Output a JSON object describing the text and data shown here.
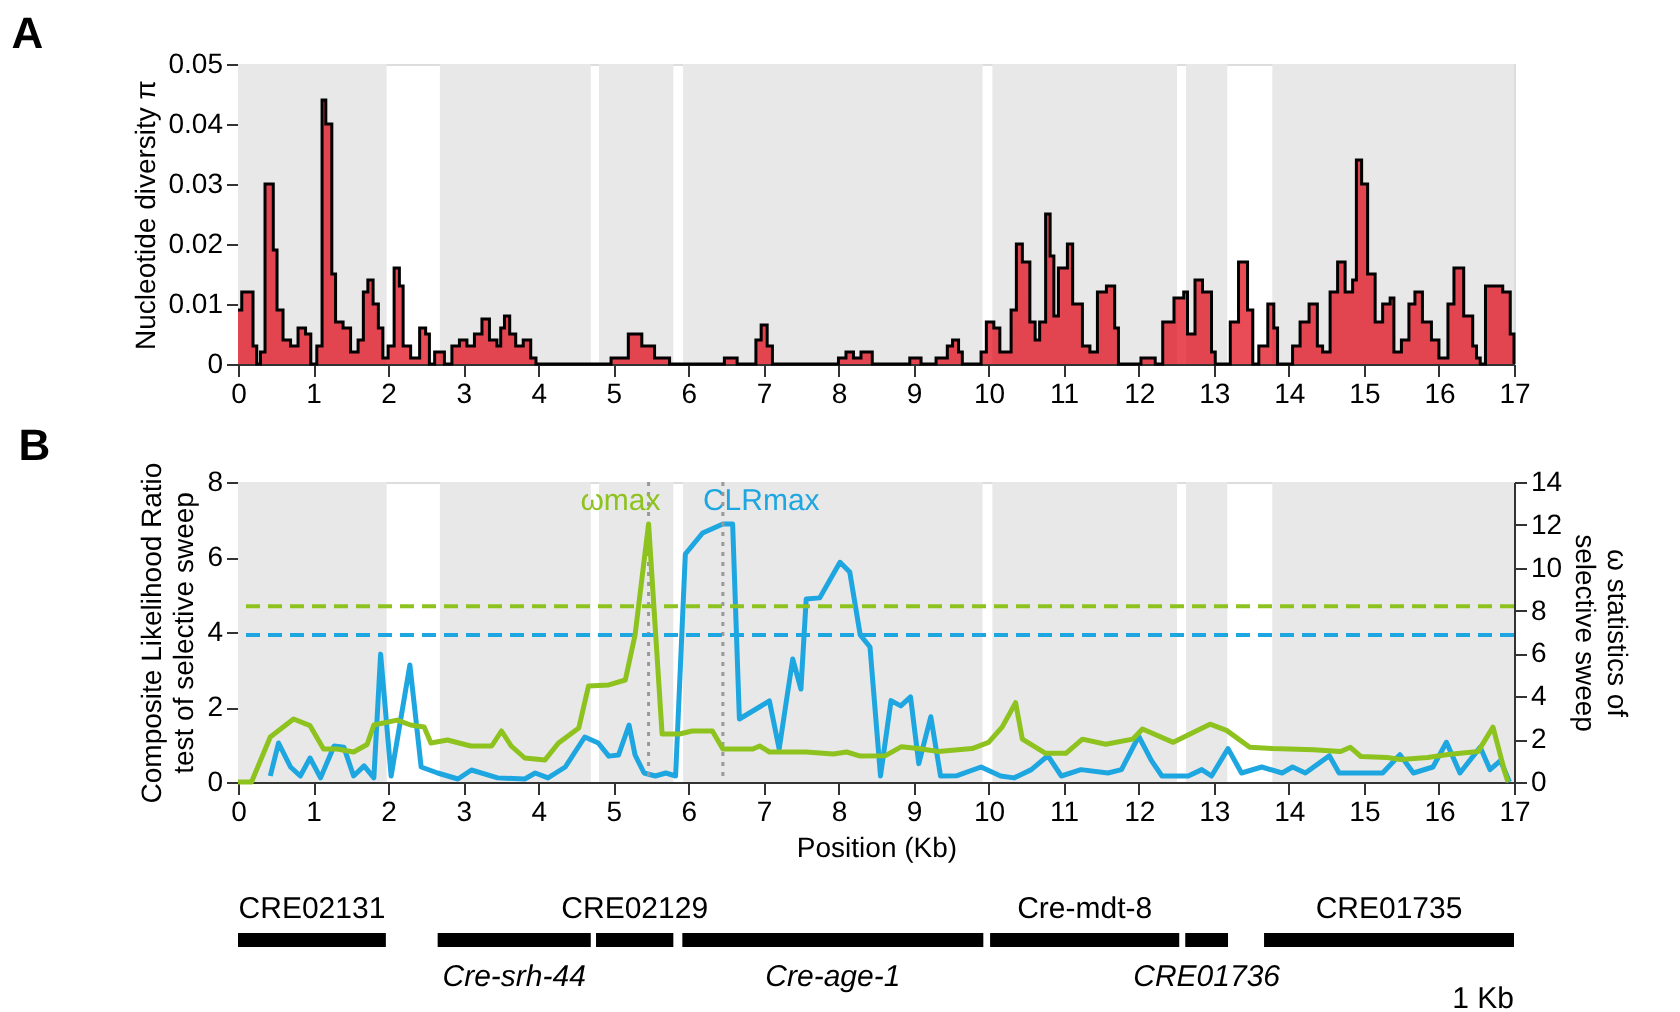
{
  "chart_data": [
    {
      "type": "area",
      "title": "A",
      "ylabel": "Nucleotide diversity π",
      "xlim": [
        0,
        17
      ],
      "xticks": [
        0,
        1,
        2,
        3,
        4,
        5,
        6,
        7,
        8,
        9,
        10,
        11,
        12,
        13,
        14,
        15,
        16,
        17
      ],
      "ylim": [
        0,
        0.05
      ],
      "yticks": [
        0,
        0.01,
        0.02,
        0.03,
        0.04,
        0.05
      ],
      "grid": false,
      "bands": [
        {
          "axis": "x",
          "from": 0,
          "to": 1.98,
          "color": "#e8e8e8"
        },
        {
          "axis": "x",
          "from": 2.69,
          "to": 4.7,
          "color": "#e8e8e8"
        },
        {
          "axis": "x",
          "from": 4.81,
          "to": 5.8,
          "color": "#e8e8e8"
        },
        {
          "axis": "x",
          "from": 5.93,
          "to": 9.92,
          "color": "#e8e8e8"
        },
        {
          "axis": "x",
          "from": 10.05,
          "to": 12.51,
          "color": "#e8e8e8"
        },
        {
          "axis": "x",
          "from": 12.63,
          "to": 13.18,
          "color": "#e8e8e8"
        },
        {
          "axis": "x",
          "from": 13.78,
          "to": 17,
          "color": "#e8e8e8"
        }
      ],
      "series": [
        {
          "color": "#e00010",
          "x": [
            0.0,
            0.05,
            0.12,
            0.2,
            0.25,
            0.3,
            0.36,
            0.4,
            0.47,
            0.52,
            0.6,
            0.7,
            0.8,
            0.9,
            0.97,
            1.05,
            1.12,
            1.17,
            1.25,
            1.3,
            1.4,
            1.5,
            1.6,
            1.67,
            1.73,
            1.8,
            1.87,
            1.93,
            2.0,
            2.08,
            2.15,
            2.2,
            2.3,
            2.42,
            2.5,
            2.55,
            2.62,
            2.7,
            2.75,
            2.85,
            2.95,
            3.05,
            3.15,
            3.25,
            3.35,
            3.45,
            3.5,
            3.55,
            3.62,
            3.7,
            3.8,
            3.9,
            3.97,
            4.95,
            4.97,
            5.15,
            5.2,
            5.33,
            5.38,
            5.5,
            5.55,
            5.7,
            5.75,
            6.45,
            6.48,
            6.62,
            6.65,
            6.85,
            6.9,
            6.97,
            7.05,
            7.12,
            7.95,
            8.0,
            8.1,
            8.15,
            8.2,
            8.3,
            8.4,
            8.45,
            8.9,
            8.95,
            9.05,
            9.1,
            9.25,
            9.3,
            9.45,
            9.52,
            9.6,
            9.65,
            9.85,
            9.9,
            9.97,
            10.07,
            10.15,
            10.3,
            10.37,
            10.45,
            10.55,
            10.62,
            10.68,
            10.76,
            10.82,
            10.87,
            10.93,
            11.05,
            11.12,
            11.25,
            11.35,
            11.45,
            11.57,
            11.68,
            11.73,
            12.0,
            12.03,
            12.15,
            12.22,
            12.32,
            12.47,
            12.6,
            12.65,
            12.75,
            12.85,
            12.97,
            13.02,
            13.15,
            13.22,
            13.33,
            13.45,
            13.52,
            13.6,
            13.68,
            13.72,
            13.8,
            13.85,
            14.0,
            14.05,
            14.15,
            14.27,
            14.38,
            14.45,
            14.55,
            14.65,
            14.75,
            14.85,
            14.9,
            14.97,
            15.05,
            15.15,
            15.25,
            15.35,
            15.4,
            15.5,
            15.6,
            15.68,
            15.78,
            15.9,
            16.0,
            16.12,
            16.2,
            16.33,
            16.45,
            16.5,
            16.55,
            16.62,
            16.75,
            16.85,
            16.95,
            17.0
          ],
          "values": [
            0.009,
            0.012,
            0.012,
            0.003,
            0.0,
            0.002,
            0.03,
            0.03,
            0.019,
            0.009,
            0.004,
            0.003,
            0.006,
            0.005,
            0.0,
            0.003,
            0.044,
            0.04,
            0.015,
            0.007,
            0.006,
            0.002,
            0.004,
            0.012,
            0.014,
            0.01,
            0.006,
            0.001,
            0.003,
            0.016,
            0.013,
            0.003,
            0.001,
            0.006,
            0.005,
            0.0,
            0.002,
            0.002,
            0.0,
            0.003,
            0.004,
            0.003,
            0.005,
            0.0075,
            0.004,
            0.003,
            0.006,
            0.008,
            0.005,
            0.003,
            0.004,
            0.001,
            0.0,
            0.0,
            0.001,
            0.001,
            0.005,
            0.005,
            0.003,
            0.003,
            0.001,
            0.001,
            0.0,
            0.0,
            0.001,
            0.001,
            0.0,
            0.0,
            0.004,
            0.0065,
            0.003,
            0.0,
            0.0,
            0.001,
            0.002,
            0.002,
            0.001,
            0.002,
            0.002,
            0.0,
            0.0,
            0.001,
            0.001,
            0.0,
            0.0,
            0.001,
            0.003,
            0.004,
            0.002,
            0.0,
            0.0,
            0.002,
            0.007,
            0.006,
            0.002,
            0.009,
            0.02,
            0.017,
            0.007,
            0.004,
            0.007,
            0.025,
            0.018,
            0.008,
            0.016,
            0.02,
            0.01,
            0.003,
            0.002,
            0.012,
            0.013,
            0.006,
            0.0,
            0.0,
            0.001,
            0.001,
            0.0,
            0.007,
            0.011,
            0.012,
            0.005,
            0.014,
            0.012,
            0.002,
            0.0,
            0.0,
            0.007,
            0.017,
            0.009,
            0.0,
            0.003,
            0.003,
            0.01,
            0.006,
            0.0,
            0.0,
            0.003,
            0.007,
            0.01,
            0.003,
            0.002,
            0.012,
            0.017,
            0.012,
            0.014,
            0.034,
            0.03,
            0.015,
            0.007,
            0.01,
            0.011,
            0.002,
            0.004,
            0.01,
            0.012,
            0.007,
            0.004,
            0.001,
            0.01,
            0.016,
            0.008,
            0.003,
            0.001,
            0.0,
            0.013,
            0.013,
            0.012,
            0.005,
            0.0
          ]
        }
      ]
    },
    {
      "type": "line",
      "title": "B",
      "xlabel": "Position (Kb)",
      "ylabel": "Composite Likelihood Ratio\ntest of selective sweep",
      "y2label": "ω statistics of\nselective sweep",
      "xlim": [
        0,
        17
      ],
      "xticks": [
        0,
        1,
        2,
        3,
        4,
        5,
        6,
        7,
        8,
        9,
        10,
        11,
        12,
        13,
        14,
        15,
        16,
        17
      ],
      "ylim": [
        0,
        8
      ],
      "yticks": [
        0,
        2,
        4,
        6,
        8
      ],
      "y2lim": [
        0,
        14
      ],
      "y2ticks": [
        0,
        2,
        4,
        6,
        8,
        10,
        12,
        14
      ],
      "grid": false,
      "marker": "none",
      "line_style": "solid",
      "bands": [
        {
          "axis": "x",
          "from": 0,
          "to": 1.98,
          "color": "#e8e8e8"
        },
        {
          "axis": "x",
          "from": 2.69,
          "to": 4.7,
          "color": "#e8e8e8"
        },
        {
          "axis": "x",
          "from": 4.81,
          "to": 5.8,
          "color": "#e8e8e8"
        },
        {
          "axis": "x",
          "from": 5.93,
          "to": 9.92,
          "color": "#e8e8e8"
        },
        {
          "axis": "x",
          "from": 10.05,
          "to": 12.51,
          "color": "#e8e8e8"
        },
        {
          "axis": "x",
          "from": 12.63,
          "to": 13.18,
          "color": "#e8e8e8"
        },
        {
          "axis": "x",
          "from": 13.78,
          "to": 17,
          "color": "#e8e8e8"
        }
      ],
      "ref_lines": [
        {
          "axis": "y2",
          "value": 8.2,
          "color": "#8dc21f",
          "line_style": "dashed"
        },
        {
          "axis": "y",
          "value": 3.92,
          "color": "#1ea6e0",
          "line_style": "dashed"
        },
        {
          "axis": "x",
          "value": 5.47,
          "color": "#999999",
          "line_style": "dotted"
        },
        {
          "axis": "x",
          "value": 6.46,
          "color": "#999999",
          "line_style": "dotted"
        }
      ],
      "series": [
        {
          "name": "ωmax",
          "color": "#8dc21f",
          "axis": "y2",
          "x": [
            0.0,
            0.18,
            0.43,
            0.74,
            0.96,
            1.14,
            1.32,
            1.54,
            1.72,
            1.81,
            2.12,
            2.3,
            2.48,
            2.57,
            2.79,
            3.1,
            3.38,
            3.51,
            3.64,
            3.82,
            4.09,
            4.27,
            4.54,
            4.67,
            4.94,
            5.16,
            5.29,
            5.47,
            5.65,
            5.88,
            6.05,
            6.32,
            6.46,
            6.86,
            6.95,
            7.08,
            7.57,
            7.93,
            8.11,
            8.29,
            8.62,
            8.84,
            9.06,
            9.33,
            9.78,
            10.0,
            10.18,
            10.36,
            10.45,
            10.76,
            11.03,
            11.25,
            11.56,
            11.92,
            12.05,
            12.46,
            12.95,
            13.17,
            13.48,
            13.79,
            14.33,
            14.69,
            14.82,
            14.96,
            15.31,
            15.49,
            15.85,
            16.12,
            16.52,
            16.72,
            16.88,
            16.92
          ],
          "values": [
            0,
            0,
            2.1,
            2.94,
            2.63,
            1.54,
            1.54,
            1.4,
            1.75,
            2.66,
            2.89,
            2.66,
            2.57,
            1.82,
            1.96,
            1.68,
            1.68,
            2.38,
            1.68,
            1.12,
            1.03,
            1.82,
            2.52,
            4.48,
            4.53,
            4.76,
            6.86,
            12.04,
            2.24,
            2.24,
            2.38,
            2.38,
            1.54,
            1.54,
            1.68,
            1.4,
            1.4,
            1.31,
            1.4,
            1.21,
            1.22,
            1.65,
            1.56,
            1.42,
            1.56,
            1.85,
            2.56,
            3.7,
            2.0,
            1.34,
            1.34,
            2.0,
            1.76,
            2.0,
            2.47,
            1.85,
            2.7,
            2.41,
            1.62,
            1.56,
            1.5,
            1.42,
            1.62,
            1.19,
            1.14,
            1.05,
            1.14,
            1.28,
            1.42,
            2.56,
            0.43,
            0
          ]
        },
        {
          "name": "CLRmax",
          "color": "#1ea6e0",
          "x": [
            0.43,
            0.54,
            0.7,
            0.83,
            0.96,
            1.1,
            1.28,
            1.41,
            1.54,
            1.68,
            1.81,
            1.9,
            2.04,
            2.29,
            2.44,
            2.66,
            2.93,
            3.11,
            3.46,
            3.82,
            3.96,
            4.13,
            4.36,
            4.62,
            4.8,
            4.94,
            5.07,
            5.21,
            5.29,
            5.41,
            5.56,
            5.7,
            5.83,
            5.96,
            6.19,
            6.46,
            6.59,
            6.68,
            7.08,
            7.21,
            7.39,
            7.5,
            7.57,
            7.75,
            8.02,
            8.15,
            8.29,
            8.42,
            8.56,
            8.7,
            8.83,
            8.96,
            9.07,
            9.23,
            9.36,
            9.58,
            9.9,
            10.16,
            10.34,
            10.57,
            10.79,
            10.97,
            11.23,
            11.59,
            11.77,
            12.0,
            12.17,
            12.31,
            12.66,
            12.84,
            12.97,
            13.19,
            13.37,
            13.64,
            13.91,
            14.05,
            14.22,
            14.54,
            14.67,
            15.25,
            15.48,
            15.66,
            15.92,
            16.1,
            16.28,
            16.55,
            16.68,
            16.82,
            16.94
          ],
          "values": [
            0.16,
            1.04,
            0.4,
            0.16,
            0.64,
            0.11,
            0.96,
            0.93,
            0.16,
            0.43,
            0.11,
            3.41,
            0.16,
            3.12,
            0.4,
            0.24,
            0.08,
            0.32,
            0.11,
            0.08,
            0.24,
            0.11,
            0.4,
            1.2,
            1.04,
            0.69,
            0.72,
            1.52,
            0.72,
            0.24,
            0.16,
            0.24,
            0.16,
            6.08,
            6.64,
            6.88,
            6.88,
            1.68,
            2.16,
            0.88,
            3.28,
            2.48,
            4.88,
            4.91,
            5.86,
            5.6,
            3.92,
            3.6,
            0.16,
            2.17,
            2.03,
            2.27,
            0.49,
            1.74,
            0.16,
            0.17,
            0.4,
            0.16,
            0.11,
            0.33,
            0.7,
            0.16,
            0.33,
            0.24,
            0.33,
            1.22,
            0.57,
            0.16,
            0.16,
            0.33,
            0.16,
            0.89,
            0.24,
            0.4,
            0.24,
            0.4,
            0.24,
            0.7,
            0.24,
            0.24,
            0.73,
            0.24,
            0.4,
            1.06,
            0.24,
            0.93,
            0.33,
            0.57,
            0
          ]
        }
      ]
    },
    {
      "type": "bar",
      "orientation": "horizontal",
      "categories": [
        null
      ],
      "xlim": [
        0,
        17
      ],
      "tick_labels": false,
      "annotations": [
        "1 Kb"
      ],
      "series": [
        {
          "name": "CRE02131",
          "color": "#000000",
          "base": [
            0
          ],
          "values": [
            1.97
          ]
        },
        {
          "name": "Cre-srh-44",
          "color": "#000000",
          "base": [
            2.66
          ],
          "values": [
            2.04
          ]
        },
        {
          "name": "CRE02129",
          "color": "#000000",
          "base": [
            4.77
          ],
          "values": [
            1.03
          ]
        },
        {
          "name": "Cre-age-1",
          "color": "#000000",
          "base": [
            9.93
          ],
          "values": [
            -4.01
          ]
        },
        {
          "name": "Cre-mdt-8",
          "color": "#000000",
          "base": [
            12.54
          ],
          "values": [
            -2.52
          ]
        },
        {
          "name": "CRE01736",
          "color": "#000000",
          "base": [
            13.19
          ],
          "values": [
            -0.57
          ]
        },
        {
          "name": "CRE01735",
          "color": "#000000",
          "base": [
            17.0
          ],
          "values": [
            -3.33
          ]
        }
      ]
    }
  ]
}
